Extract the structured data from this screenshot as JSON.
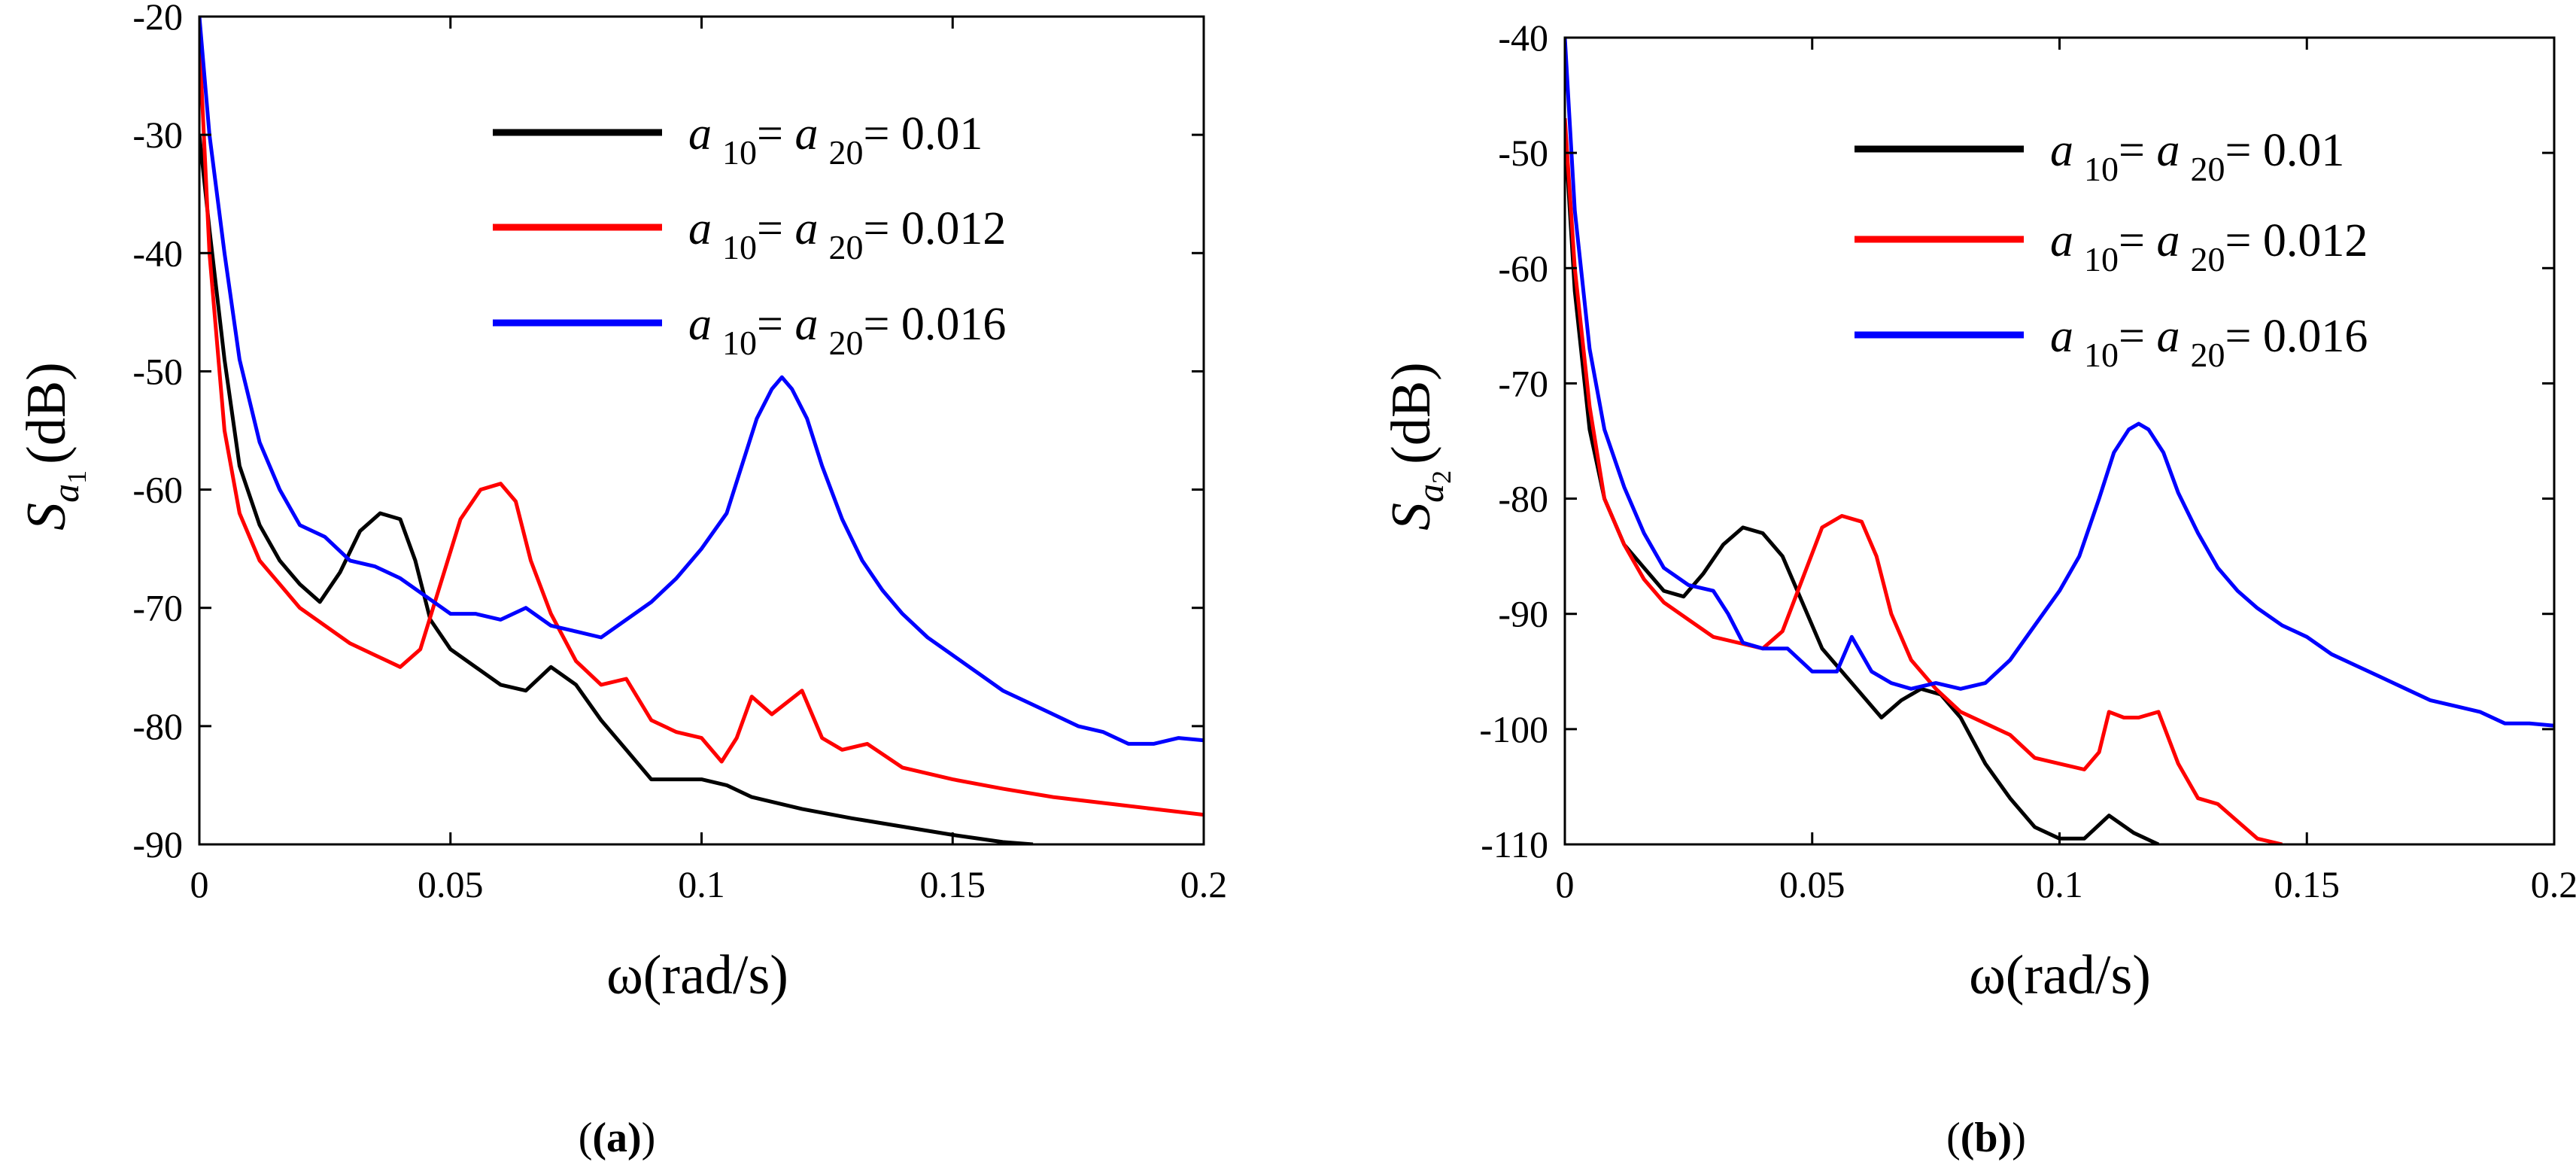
{
  "figure": {
    "captions": [
      "(a)",
      "(b)"
    ]
  },
  "chart_data": [
    {
      "type": "line",
      "panel": "(a)",
      "xlabel": "ω(rad/s)",
      "ylabel": {
        "main": "S",
        "sub": "a",
        "subsub": "1",
        "unit": "(dB)"
      },
      "xlim": [
        0,
        0.2
      ],
      "ylim": [
        -90,
        -20
      ],
      "xticks": [
        0,
        0.05,
        0.1,
        0.15,
        0.2
      ],
      "xtick_labels": [
        "0",
        "0.05",
        "0.1",
        "0.15",
        "0.2"
      ],
      "yticks": [
        -20,
        -30,
        -40,
        -50,
        -60,
        -70,
        -80,
        -90
      ],
      "ytick_labels": [
        "-20",
        "-30",
        "-40",
        "-50",
        "-60",
        "-70",
        "-80",
        "-90"
      ],
      "grid": false,
      "legend_position": "top-right",
      "series": [
        {
          "name": "a10 = a20 = 0.01",
          "legend": {
            "a": "a",
            "sub1": "10",
            "eq": "= ",
            "sub2": "20",
            "value": "= 0.01"
          },
          "color": "#000000",
          "x": [
            0,
            0.002,
            0.005,
            0.008,
            0.012,
            0.016,
            0.02,
            0.024,
            0.028,
            0.032,
            0.036,
            0.04,
            0.043,
            0.046,
            0.05,
            0.055,
            0.06,
            0.065,
            0.07,
            0.075,
            0.08,
            0.085,
            0.09,
            0.095,
            0.1,
            0.105,
            0.11,
            0.12,
            0.13,
            0.14,
            0.15,
            0.16,
            0.166
          ],
          "y": [
            -30,
            -38,
            -49,
            -58,
            -63,
            -66,
            -68,
            -69.5,
            -67,
            -63.5,
            -62,
            -62.5,
            -66,
            -71,
            -73.5,
            -75,
            -76.5,
            -77,
            -75,
            -76.5,
            -79.5,
            -82,
            -84.5,
            -84.5,
            -84.5,
            -85,
            -86,
            -87,
            -87.8,
            -88.5,
            -89.2,
            -89.8,
            -90
          ]
        },
        {
          "name": "a10 = a20 = 0.012",
          "legend": {
            "a": "a",
            "sub1": "10",
            "eq": "= ",
            "sub2": "20",
            "value": "= 0.012"
          },
          "color": "#ff0000",
          "x": [
            0,
            0.002,
            0.005,
            0.008,
            0.012,
            0.016,
            0.02,
            0.025,
            0.03,
            0.035,
            0.04,
            0.044,
            0.048,
            0.052,
            0.056,
            0.06,
            0.063,
            0.066,
            0.07,
            0.075,
            0.08,
            0.085,
            0.09,
            0.095,
            0.1,
            0.104,
            0.107,
            0.11,
            0.114,
            0.117,
            0.12,
            0.124,
            0.128,
            0.133,
            0.14,
            0.15,
            0.16,
            0.17,
            0.18,
            0.19,
            0.2
          ],
          "y": [
            -22,
            -40,
            -55,
            -62,
            -66,
            -68,
            -70,
            -71.5,
            -73,
            -74,
            -75,
            -73.5,
            -68,
            -62.5,
            -60,
            -59.5,
            -61,
            -66,
            -70.5,
            -74.5,
            -76.5,
            -76,
            -79.5,
            -80.5,
            -81,
            -83,
            -81,
            -77.5,
            -79,
            -78,
            -77,
            -81,
            -82,
            -81.5,
            -83.5,
            -84.5,
            -85.3,
            -86,
            -86.5,
            -87,
            -87.5
          ]
        },
        {
          "name": "a10 = a20 = 0.016",
          "legend": {
            "a": "a",
            "sub1": "10",
            "eq": "= ",
            "sub2": "20",
            "value": "= 0.016"
          },
          "color": "#0000ff",
          "x": [
            0,
            0.002,
            0.005,
            0.008,
            0.012,
            0.016,
            0.02,
            0.025,
            0.03,
            0.035,
            0.04,
            0.045,
            0.05,
            0.055,
            0.06,
            0.065,
            0.07,
            0.075,
            0.08,
            0.085,
            0.09,
            0.095,
            0.1,
            0.105,
            0.108,
            0.111,
            0.114,
            0.116,
            0.118,
            0.121,
            0.124,
            0.128,
            0.132,
            0.136,
            0.14,
            0.145,
            0.15,
            0.155,
            0.16,
            0.165,
            0.17,
            0.175,
            0.18,
            0.185,
            0.19,
            0.195,
            0.2
          ],
          "y": [
            -20,
            -30,
            -40,
            -49,
            -56,
            -60,
            -63,
            -64,
            -66,
            -66.5,
            -67.5,
            -69,
            -70.5,
            -70.5,
            -71,
            -70,
            -71.5,
            -72,
            -72.5,
            -71,
            -69.5,
            -67.5,
            -65,
            -62,
            -58,
            -54,
            -51.5,
            -50.5,
            -51.5,
            -54,
            -58,
            -62.5,
            -66,
            -68.5,
            -70.5,
            -72.5,
            -74,
            -75.5,
            -77,
            -78,
            -79,
            -80,
            -80.5,
            -81.5,
            -81.5,
            -81,
            -81.2
          ]
        }
      ]
    },
    {
      "type": "line",
      "panel": "(b)",
      "xlabel": "ω(rad/s)",
      "ylabel": {
        "main": "S",
        "sub": "a",
        "subsub": "2",
        "unit": "(dB)"
      },
      "xlim": [
        0,
        0.2
      ],
      "ylim": [
        -110,
        -40
      ],
      "xticks": [
        0,
        0.05,
        0.1,
        0.15,
        0.2
      ],
      "xtick_labels": [
        "0",
        "0.05",
        "0.1",
        "0.15",
        "0.2"
      ],
      "yticks": [
        -40,
        -50,
        -60,
        -70,
        -80,
        -90,
        -100,
        -110
      ],
      "ytick_labels": [
        "-40",
        "-50",
        "-60",
        "-70",
        "-80",
        "-90",
        "-100",
        "-110"
      ],
      "grid": false,
      "legend_position": "top-right",
      "series": [
        {
          "name": "a10 = a20 = 0.01",
          "legend": {
            "a": "a",
            "sub1": "10",
            "eq": "= ",
            "sub2": "20",
            "value": "= 0.01"
          },
          "color": "#000000",
          "x": [
            0,
            0.002,
            0.005,
            0.008,
            0.012,
            0.016,
            0.02,
            0.024,
            0.028,
            0.032,
            0.036,
            0.04,
            0.044,
            0.048,
            0.052,
            0.056,
            0.06,
            0.064,
            0.068,
            0.072,
            0.076,
            0.08,
            0.085,
            0.09,
            0.095,
            0.1,
            0.105,
            0.11,
            0.115,
            0.12
          ],
          "y": [
            -48,
            -62,
            -74,
            -80,
            -84,
            -86,
            -88,
            -88.5,
            -86.5,
            -84,
            -82.5,
            -83,
            -85,
            -89,
            -93,
            -95,
            -97,
            -99,
            -97.5,
            -96.5,
            -97,
            -99,
            -103,
            -106,
            -108.5,
            -109.5,
            -109.5,
            -107.5,
            -109,
            -110
          ]
        },
        {
          "name": "a10 = a20 = 0.012",
          "legend": {
            "a": "a",
            "sub1": "10",
            "eq": "= ",
            "sub2": "20",
            "value": "= 0.012"
          },
          "color": "#ff0000",
          "x": [
            0,
            0.002,
            0.005,
            0.008,
            0.012,
            0.016,
            0.02,
            0.025,
            0.03,
            0.035,
            0.04,
            0.044,
            0.048,
            0.052,
            0.056,
            0.06,
            0.063,
            0.066,
            0.07,
            0.075,
            0.08,
            0.085,
            0.09,
            0.095,
            0.1,
            0.105,
            0.108,
            0.11,
            0.113,
            0.116,
            0.12,
            0.124,
            0.128,
            0.132,
            0.136,
            0.14,
            0.145
          ],
          "y": [
            -47,
            -60,
            -72,
            -80,
            -84,
            -87,
            -89,
            -90.5,
            -92,
            -92.5,
            -93,
            -91.5,
            -87,
            -82.5,
            -81.5,
            -82,
            -85,
            -90,
            -94,
            -96.5,
            -98.5,
            -99.5,
            -100.5,
            -102.5,
            -103,
            -103.5,
            -102,
            -98.5,
            -99,
            -99,
            -98.5,
            -103,
            -106,
            -106.5,
            -108,
            -109.5,
            -110
          ]
        },
        {
          "name": "a10 = a20 = 0.016",
          "legend": {
            "a": "a",
            "sub1": "10",
            "eq": "= ",
            "sub2": "20",
            "value": "= 0.016"
          },
          "color": "#0000ff",
          "x": [
            0,
            0.002,
            0.005,
            0.008,
            0.012,
            0.016,
            0.02,
            0.025,
            0.03,
            0.033,
            0.036,
            0.04,
            0.045,
            0.05,
            0.055,
            0.058,
            0.062,
            0.066,
            0.07,
            0.075,
            0.08,
            0.085,
            0.09,
            0.095,
            0.1,
            0.104,
            0.108,
            0.111,
            0.114,
            0.116,
            0.118,
            0.121,
            0.124,
            0.128,
            0.132,
            0.136,
            0.14,
            0.145,
            0.15,
            0.155,
            0.16,
            0.165,
            0.17,
            0.175,
            0.18,
            0.185,
            0.19,
            0.195,
            0.2
          ],
          "y": [
            -40,
            -55,
            -67,
            -74,
            -79,
            -83,
            -86,
            -87.5,
            -88,
            -90,
            -92.5,
            -93,
            -93,
            -95,
            -95,
            -92,
            -95,
            -96,
            -96.5,
            -96,
            -96.5,
            -96,
            -94,
            -91,
            -88,
            -85,
            -80,
            -76,
            -74,
            -73.5,
            -74,
            -76,
            -79.5,
            -83,
            -86,
            -88,
            -89.5,
            -91,
            -92,
            -93.5,
            -94.5,
            -95.5,
            -96.5,
            -97.5,
            -98,
            -98.5,
            -99.5,
            -99.5,
            -99.7
          ]
        }
      ]
    }
  ]
}
